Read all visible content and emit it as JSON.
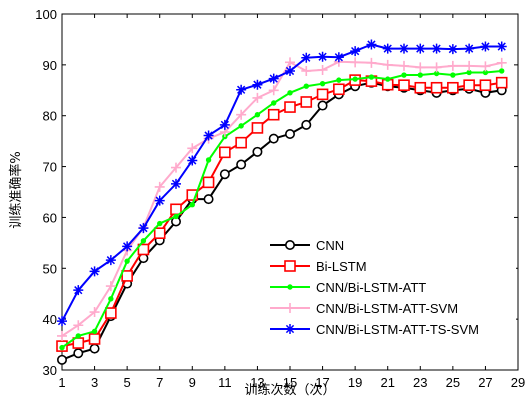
{
  "chart_data": {
    "type": "line",
    "xlabel": "训练次数（次）",
    "ylabel": "训练准确率%",
    "xlim": [
      1,
      29
    ],
    "ylim": [
      30,
      100
    ],
    "xticks": [
      1,
      3,
      5,
      7,
      9,
      11,
      13,
      15,
      17,
      19,
      21,
      23,
      25,
      27,
      29
    ],
    "yticks": [
      30,
      40,
      50,
      60,
      70,
      80,
      90,
      100
    ],
    "grid": false,
    "legend_position": "lower-right",
    "x": [
      1,
      2,
      3,
      4,
      5,
      6,
      7,
      8,
      9,
      10,
      11,
      12,
      13,
      14,
      15,
      16,
      17,
      18,
      19,
      20,
      21,
      22,
      23,
      24,
      25,
      26,
      27,
      28
    ],
    "series": [
      {
        "name": "CNN",
        "color": "#000000",
        "marker": "circle",
        "values": [
          32.0,
          33.3,
          34.2,
          40.6,
          47.0,
          52.0,
          55.5,
          59.2,
          63.6,
          63.6,
          68.5,
          70.4,
          72.9,
          75.5,
          76.4,
          78.2,
          82.0,
          84.2,
          85.8,
          86.5,
          85.8,
          85.5,
          85.0,
          84.5,
          85.0,
          85.3,
          84.5,
          85.0
        ]
      },
      {
        "name": "Bi-LSTM",
        "color": "#ff0000",
        "marker": "square",
        "values": [
          34.7,
          35.3,
          36.1,
          41.2,
          48.5,
          53.7,
          56.9,
          61.6,
          64.4,
          66.9,
          72.8,
          74.7,
          77.6,
          80.2,
          81.7,
          82.7,
          84.2,
          85.2,
          87.0,
          86.8,
          86.1,
          86.0,
          85.5,
          85.5,
          85.5,
          86.0,
          86.0,
          86.5
        ]
      },
      {
        "name": "CNN/Bi-LSTM-ATT",
        "color": "#00ff00",
        "marker": "dot",
        "values": [
          34.4,
          36.7,
          37.6,
          44.0,
          51.4,
          55.4,
          58.8,
          60.2,
          62.5,
          71.3,
          75.9,
          78.0,
          80.2,
          82.5,
          84.5,
          85.8,
          86.3,
          87.0,
          87.2,
          87.6,
          87.2,
          88.0,
          88.0,
          88.3,
          88.0,
          88.5,
          88.5,
          88.8
        ]
      },
      {
        "name": "CNN/Bi-LSTM-ATT-SVM",
        "color": "#ffaacc",
        "marker": "plus",
        "values": [
          36.7,
          38.8,
          41.4,
          46.5,
          53.5,
          58.0,
          66.0,
          69.8,
          73.6,
          75.5,
          76.8,
          80.2,
          83.5,
          85.0,
          90.5,
          88.8,
          89.0,
          90.6,
          90.5,
          90.4,
          90.0,
          89.8,
          89.5,
          89.5,
          89.8,
          89.8,
          89.7,
          90.4
        ]
      },
      {
        "name": "CNN/Bi-LSTM-ATT-TS-SVM",
        "color": "#0000ff",
        "marker": "star",
        "values": [
          39.6,
          45.7,
          49.4,
          51.6,
          54.3,
          57.9,
          63.3,
          66.6,
          71.2,
          76.1,
          78.2,
          85.1,
          86.1,
          87.3,
          88.8,
          91.4,
          91.6,
          91.5,
          92.7,
          94.0,
          93.2,
          93.2,
          93.2,
          93.2,
          93.1,
          93.2,
          93.6,
          93.6
        ]
      }
    ]
  }
}
